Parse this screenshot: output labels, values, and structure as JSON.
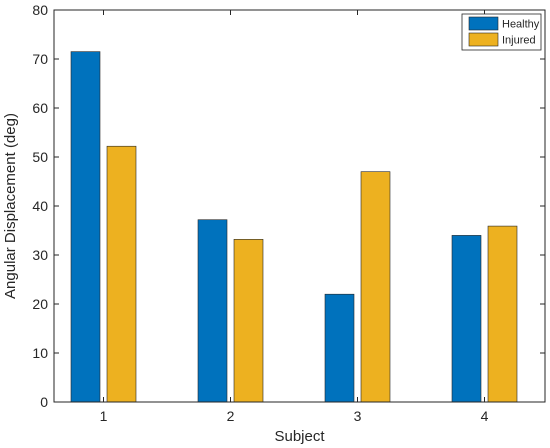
{
  "chart_data": {
    "type": "bar",
    "categories": [
      "1",
      "2",
      "3",
      "4"
    ],
    "series": [
      {
        "name": "Healthy",
        "color": "#0072BD",
        "values": [
          71.5,
          37.2,
          22.0,
          34.0
        ]
      },
      {
        "name": "Injured",
        "color": "#EDB120",
        "values": [
          52.2,
          33.2,
          47.0,
          35.9
        ]
      }
    ],
    "xlabel": "Subject",
    "ylabel": "Angular Displacement (deg)",
    "ylim": [
      0,
      80
    ],
    "yticks": [
      0,
      10,
      20,
      30,
      40,
      50,
      60,
      70,
      80
    ],
    "grid": false,
    "legend_position": "top-right"
  }
}
